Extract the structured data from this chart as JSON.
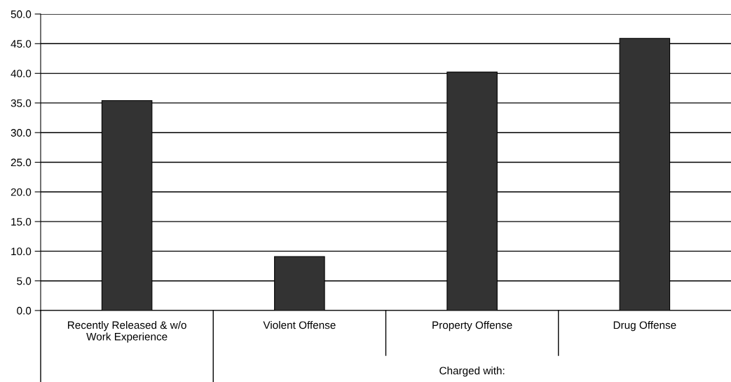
{
  "chart_data": {
    "type": "bar",
    "categories": [
      "Recently Released & w/o\nWork Experience",
      "Violent Offense",
      "Property Offense",
      "Drug Offense"
    ],
    "values": [
      35.4,
      9.1,
      40.2,
      45.9
    ],
    "color": "#333333",
    "ylim": [
      0,
      50
    ],
    "yticks": [
      {
        "value": 0,
        "label": "0.0"
      },
      {
        "value": 5,
        "label": "5.0"
      },
      {
        "value": 10,
        "label": "10.0"
      },
      {
        "value": 15,
        "label": "15.0"
      },
      {
        "value": 20,
        "label": "20.0"
      },
      {
        "value": 25,
        "label": "25.0"
      },
      {
        "value": 30,
        "label": "30.0"
      },
      {
        "value": 35,
        "label": "35.0"
      },
      {
        "value": 40,
        "label": "40.0"
      },
      {
        "value": 45,
        "label": "45.0"
      },
      {
        "value": 50,
        "label": "50.0"
      }
    ],
    "grid": "y",
    "legend": false,
    "annotations": [
      "Charged with:"
    ]
  }
}
